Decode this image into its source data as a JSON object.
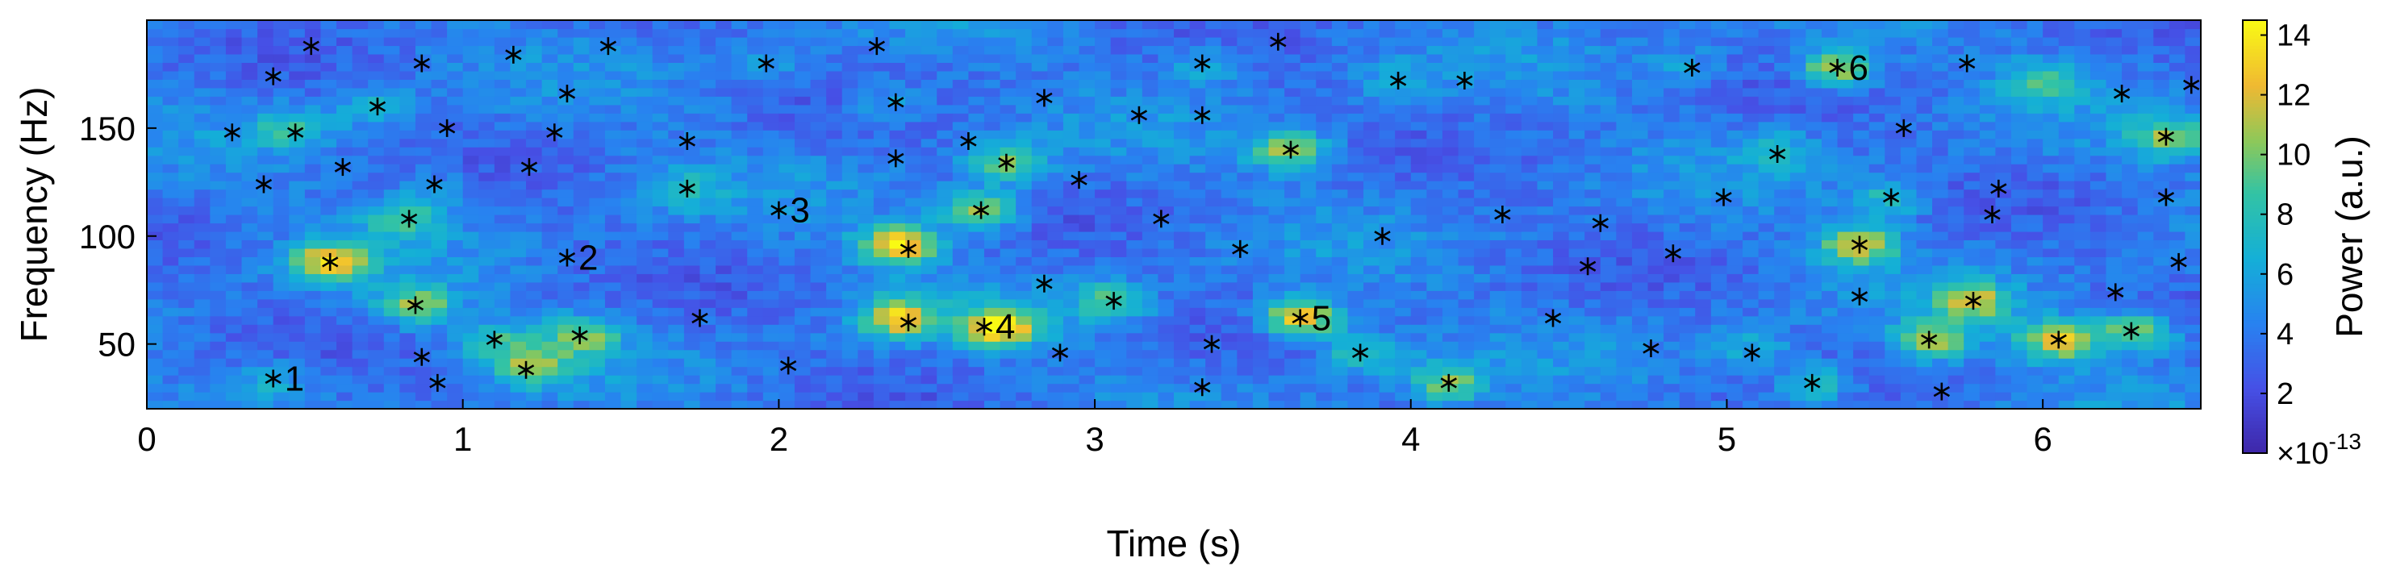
{
  "chart_data": {
    "type": "heatmap",
    "xlabel": "Time (s)",
    "ylabel": "Frequency (Hz)",
    "colorbar_label": "Power (a.u.)",
    "colorbar_exponent": "×10",
    "colorbar_exponent_power": "-13",
    "xlim": [
      0,
      6.5
    ],
    "ylim": [
      20,
      200
    ],
    "clim": [
      0,
      14.5
    ],
    "x_ticks": [
      0,
      1,
      2,
      3,
      4,
      5,
      6
    ],
    "y_ticks": [
      50,
      100,
      150
    ],
    "colorbar_ticks": [
      2,
      4,
      6,
      8,
      10,
      12,
      14
    ],
    "colormap": "parula",
    "background_level": 4,
    "blobs": [
      {
        "t": 0.58,
        "f": 88,
        "p": 13
      },
      {
        "t": 0.85,
        "f": 68,
        "p": 11
      },
      {
        "t": 0.45,
        "f": 150,
        "p": 8
      },
      {
        "t": 0.82,
        "f": 108,
        "p": 9
      },
      {
        "t": 1.22,
        "f": 40,
        "p": 10
      },
      {
        "t": 1.38,
        "f": 54,
        "p": 10
      },
      {
        "t": 1.1,
        "f": 52,
        "p": 8
      },
      {
        "t": 1.7,
        "f": 122,
        "p": 7
      },
      {
        "t": 0.4,
        "f": 34,
        "p": 7
      },
      {
        "t": 0.72,
        "f": 160,
        "p": 7
      },
      {
        "t": 2.38,
        "f": 96,
        "p": 14
      },
      {
        "t": 2.38,
        "f": 62,
        "p": 13
      },
      {
        "t": 2.7,
        "f": 58,
        "p": 14
      },
      {
        "t": 2.72,
        "f": 134,
        "p": 10
      },
      {
        "t": 2.64,
        "f": 112,
        "p": 11
      },
      {
        "t": 3.05,
        "f": 70,
        "p": 9
      },
      {
        "t": 3.65,
        "f": 62,
        "p": 14
      },
      {
        "t": 3.62,
        "f": 140,
        "p": 11
      },
      {
        "t": 3.85,
        "f": 46,
        "p": 9
      },
      {
        "t": 4.12,
        "f": 32,
        "p": 10
      },
      {
        "t": 5.35,
        "f": 178,
        "p": 12
      },
      {
        "t": 5.42,
        "f": 96,
        "p": 12
      },
      {
        "t": 5.65,
        "f": 52,
        "p": 11
      },
      {
        "t": 5.78,
        "f": 70,
        "p": 11
      },
      {
        "t": 6.05,
        "f": 52,
        "p": 13
      },
      {
        "t": 6.3,
        "f": 56,
        "p": 11
      },
      {
        "t": 6.4,
        "f": 146,
        "p": 10
      },
      {
        "t": 5.28,
        "f": 32,
        "p": 9
      },
      {
        "t": 5.52,
        "f": 118,
        "p": 8
      },
      {
        "t": 5.15,
        "f": 140,
        "p": 7
      },
      {
        "t": 6.0,
        "f": 172,
        "p": 9
      },
      {
        "t": 3.35,
        "f": 180,
        "p": 7
      },
      {
        "t": 2.0,
        "f": 180,
        "p": 6
      },
      {
        "t": 4.88,
        "f": 178,
        "p": 6
      },
      {
        "t": 3.95,
        "f": 172,
        "p": 6
      },
      {
        "t": 2.35,
        "f": 162,
        "p": 7
      },
      {
        "t": 5.08,
        "f": 48,
        "p": 7
      },
      {
        "t": 0.9,
        "f": 124,
        "p": 6
      }
    ],
    "peaks": [
      {
        "t": 0.4,
        "f": 34,
        "label": "1"
      },
      {
        "t": 1.33,
        "f": 90,
        "label": "2"
      },
      {
        "t": 2.0,
        "f": 112,
        "label": "3"
      },
      {
        "t": 2.65,
        "f": 58,
        "label": "4"
      },
      {
        "t": 3.65,
        "f": 62,
        "label": "5"
      },
      {
        "t": 5.35,
        "f": 178,
        "label": "6"
      },
      {
        "t": 0.4,
        "f": 174
      },
      {
        "t": 0.52,
        "f": 188
      },
      {
        "t": 0.27,
        "f": 148
      },
      {
        "t": 0.47,
        "f": 148
      },
      {
        "t": 0.37,
        "f": 124
      },
      {
        "t": 0.62,
        "f": 132
      },
      {
        "t": 0.73,
        "f": 160
      },
      {
        "t": 0.87,
        "f": 180
      },
      {
        "t": 0.95,
        "f": 150
      },
      {
        "t": 0.91,
        "f": 124
      },
      {
        "t": 0.83,
        "f": 108
      },
      {
        "t": 0.58,
        "f": 88
      },
      {
        "t": 0.85,
        "f": 68
      },
      {
        "t": 0.87,
        "f": 44
      },
      {
        "t": 0.92,
        "f": 32
      },
      {
        "t": 1.1,
        "f": 52
      },
      {
        "t": 1.2,
        "f": 38
      },
      {
        "t": 1.37,
        "f": 54
      },
      {
        "t": 1.21,
        "f": 132
      },
      {
        "t": 1.29,
        "f": 148
      },
      {
        "t": 1.33,
        "f": 166
      },
      {
        "t": 1.16,
        "f": 184
      },
      {
        "t": 1.46,
        "f": 188
      },
      {
        "t": 1.71,
        "f": 144
      },
      {
        "t": 1.71,
        "f": 122
      },
      {
        "t": 1.75,
        "f": 62
      },
      {
        "t": 1.96,
        "f": 180
      },
      {
        "t": 2.03,
        "f": 40
      },
      {
        "t": 2.31,
        "f": 188
      },
      {
        "t": 2.37,
        "f": 162
      },
      {
        "t": 2.37,
        "f": 136
      },
      {
        "t": 2.41,
        "f": 94
      },
      {
        "t": 2.41,
        "f": 60
      },
      {
        "t": 2.6,
        "f": 144
      },
      {
        "t": 2.64,
        "f": 112
      },
      {
        "t": 2.72,
        "f": 134
      },
      {
        "t": 2.84,
        "f": 164
      },
      {
        "t": 2.84,
        "f": 78
      },
      {
        "t": 2.89,
        "f": 46
      },
      {
        "t": 2.95,
        "f": 126
      },
      {
        "t": 3.06,
        "f": 70
      },
      {
        "t": 3.14,
        "f": 156
      },
      {
        "t": 3.21,
        "f": 108
      },
      {
        "t": 3.34,
        "f": 180
      },
      {
        "t": 3.34,
        "f": 156
      },
      {
        "t": 3.37,
        "f": 50
      },
      {
        "t": 3.34,
        "f": 30
      },
      {
        "t": 3.46,
        "f": 94
      },
      {
        "t": 3.58,
        "f": 190
      },
      {
        "t": 3.62,
        "f": 140
      },
      {
        "t": 3.84,
        "f": 46
      },
      {
        "t": 3.91,
        "f": 100
      },
      {
        "t": 3.96,
        "f": 172
      },
      {
        "t": 4.12,
        "f": 32
      },
      {
        "t": 4.17,
        "f": 172
      },
      {
        "t": 4.29,
        "f": 110
      },
      {
        "t": 4.45,
        "f": 62
      },
      {
        "t": 4.56,
        "f": 86
      },
      {
        "t": 4.6,
        "f": 106
      },
      {
        "t": 4.76,
        "f": 48
      },
      {
        "t": 4.83,
        "f": 92
      },
      {
        "t": 4.89,
        "f": 178
      },
      {
        "t": 4.99,
        "f": 118
      },
      {
        "t": 5.08,
        "f": 46
      },
      {
        "t": 5.16,
        "f": 138
      },
      {
        "t": 5.27,
        "f": 32
      },
      {
        "t": 5.42,
        "f": 96
      },
      {
        "t": 5.42,
        "f": 72
      },
      {
        "t": 5.52,
        "f": 118
      },
      {
        "t": 5.56,
        "f": 150
      },
      {
        "t": 5.64,
        "f": 52
      },
      {
        "t": 5.68,
        "f": 28
      },
      {
        "t": 5.76,
        "f": 180
      },
      {
        "t": 5.78,
        "f": 70
      },
      {
        "t": 5.86,
        "f": 122
      },
      {
        "t": 5.84,
        "f": 110
      },
      {
        "t": 6.05,
        "f": 52
      },
      {
        "t": 6.23,
        "f": 74
      },
      {
        "t": 6.25,
        "f": 166
      },
      {
        "t": 6.28,
        "f": 56
      },
      {
        "t": 6.39,
        "f": 146
      },
      {
        "t": 6.39,
        "f": 118
      },
      {
        "t": 6.43,
        "f": 88
      },
      {
        "t": 6.47,
        "f": 170
      }
    ]
  }
}
